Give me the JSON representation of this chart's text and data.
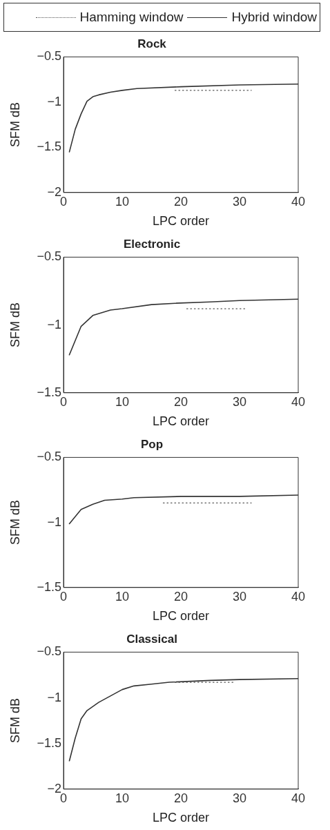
{
  "chart_data": [
    {
      "type": "line",
      "title": "Rock",
      "xlabel": "LPC order",
      "ylabel": "SFM dB",
      "xlim": [
        0,
        40
      ],
      "xticks": [
        0,
        10,
        20,
        30,
        40
      ],
      "ylim": [
        -2,
        -0.5
      ],
      "yticks": [
        {
          "value": -2,
          "label": "−2"
        },
        {
          "value": -1.5,
          "label": "−1.5"
        },
        {
          "value": -1,
          "label": "−1"
        },
        {
          "value": -0.5,
          "label": "−0.5"
        }
      ],
      "grid": false,
      "legend": "top",
      "marker": "none",
      "series": [
        {
          "name": "Hamming window",
          "color": "#555555",
          "line_style": "dotted",
          "x": [
            19,
            22,
            25,
            28,
            32
          ],
          "values": [
            -0.87,
            -0.87,
            -0.87,
            -0.87,
            -0.87
          ]
        },
        {
          "name": "Hybrid window",
          "color": "#333333",
          "line_style": "solid",
          "x": [
            1,
            2,
            3,
            4,
            5,
            6,
            8,
            10,
            12.5,
            20,
            30,
            40
          ],
          "values": [
            -1.55,
            -1.3,
            -1.13,
            -0.99,
            -0.94,
            -0.92,
            -0.89,
            -0.87,
            -0.85,
            -0.83,
            -0.81,
            -0.8
          ]
        }
      ]
    },
    {
      "type": "line",
      "title": "Electronic",
      "xlabel": "LPC order",
      "ylabel": "SFM dB",
      "xlim": [
        0,
        40
      ],
      "xticks": [
        0,
        10,
        20,
        30,
        40
      ],
      "ylim": [
        -1.5,
        -0.5
      ],
      "yticks": [
        {
          "value": -1.5,
          "label": "−1.5"
        },
        {
          "value": -1,
          "label": "−1"
        },
        {
          "value": -0.5,
          "label": "−0.5"
        }
      ],
      "grid": false,
      "marker": "none",
      "series": [
        {
          "color": "#555555",
          "line_style": "dotted",
          "x": [
            21,
            24,
            27,
            31
          ],
          "values": [
            -0.88,
            -0.88,
            -0.88,
            -0.88
          ]
        },
        {
          "color": "#333333",
          "line_style": "solid",
          "x": [
            1,
            3,
            5,
            8,
            10,
            15,
            19,
            25,
            30,
            40
          ],
          "values": [
            -1.22,
            -1.01,
            -0.93,
            -0.89,
            -0.88,
            -0.85,
            -0.84,
            -0.83,
            -0.82,
            -0.81
          ]
        }
      ]
    },
    {
      "type": "line",
      "title": "Pop",
      "xlabel": "LPC order",
      "ylabel": "SFM dB",
      "xlim": [
        0,
        40
      ],
      "xticks": [
        0,
        10,
        20,
        30,
        40
      ],
      "ylim": [
        -1.5,
        -0.5
      ],
      "yticks": [
        {
          "value": -1.5,
          "label": "−1.5"
        },
        {
          "value": -1,
          "label": "−1"
        },
        {
          "value": -0.5,
          "label": "−0.5"
        }
      ],
      "grid": false,
      "marker": "none",
      "series": [
        {
          "color": "#555555",
          "line_style": "dotted",
          "x": [
            17,
            21,
            25,
            29,
            32
          ],
          "values": [
            -0.85,
            -0.85,
            -0.85,
            -0.85,
            -0.85
          ]
        },
        {
          "color": "#333333",
          "line_style": "solid",
          "x": [
            1,
            3,
            5,
            7,
            10,
            12,
            20,
            30,
            40
          ],
          "values": [
            -1.01,
            -0.9,
            -0.86,
            -0.83,
            -0.82,
            -0.81,
            -0.8,
            -0.8,
            -0.79
          ]
        }
      ]
    },
    {
      "type": "line",
      "title": "Classical",
      "xlabel": "LPC order",
      "ylabel": "SFM dB",
      "xlim": [
        0,
        40
      ],
      "xticks": [
        0,
        10,
        20,
        30,
        40
      ],
      "ylim": [
        -2,
        -0.5
      ],
      "yticks": [
        {
          "value": -2,
          "label": "−2"
        },
        {
          "value": -1.5,
          "label": "−1.5"
        },
        {
          "value": -1,
          "label": "−1"
        },
        {
          "value": -0.5,
          "label": "−0.5"
        }
      ],
      "grid": false,
      "marker": "none",
      "series": [
        {
          "color": "#555555",
          "line_style": "dotted",
          "x": [
            19,
            22,
            25,
            29
          ],
          "values": [
            -0.83,
            -0.83,
            -0.83,
            -0.83
          ]
        },
        {
          "color": "#333333",
          "line_style": "solid",
          "x": [
            1,
            2,
            3,
            4,
            6,
            8,
            10,
            12,
            15,
            18,
            25,
            30,
            40
          ],
          "values": [
            -1.69,
            -1.44,
            -1.23,
            -1.14,
            -1.05,
            -0.98,
            -0.91,
            -0.87,
            -0.85,
            -0.83,
            -0.81,
            -0.8,
            -0.79
          ]
        }
      ]
    }
  ]
}
